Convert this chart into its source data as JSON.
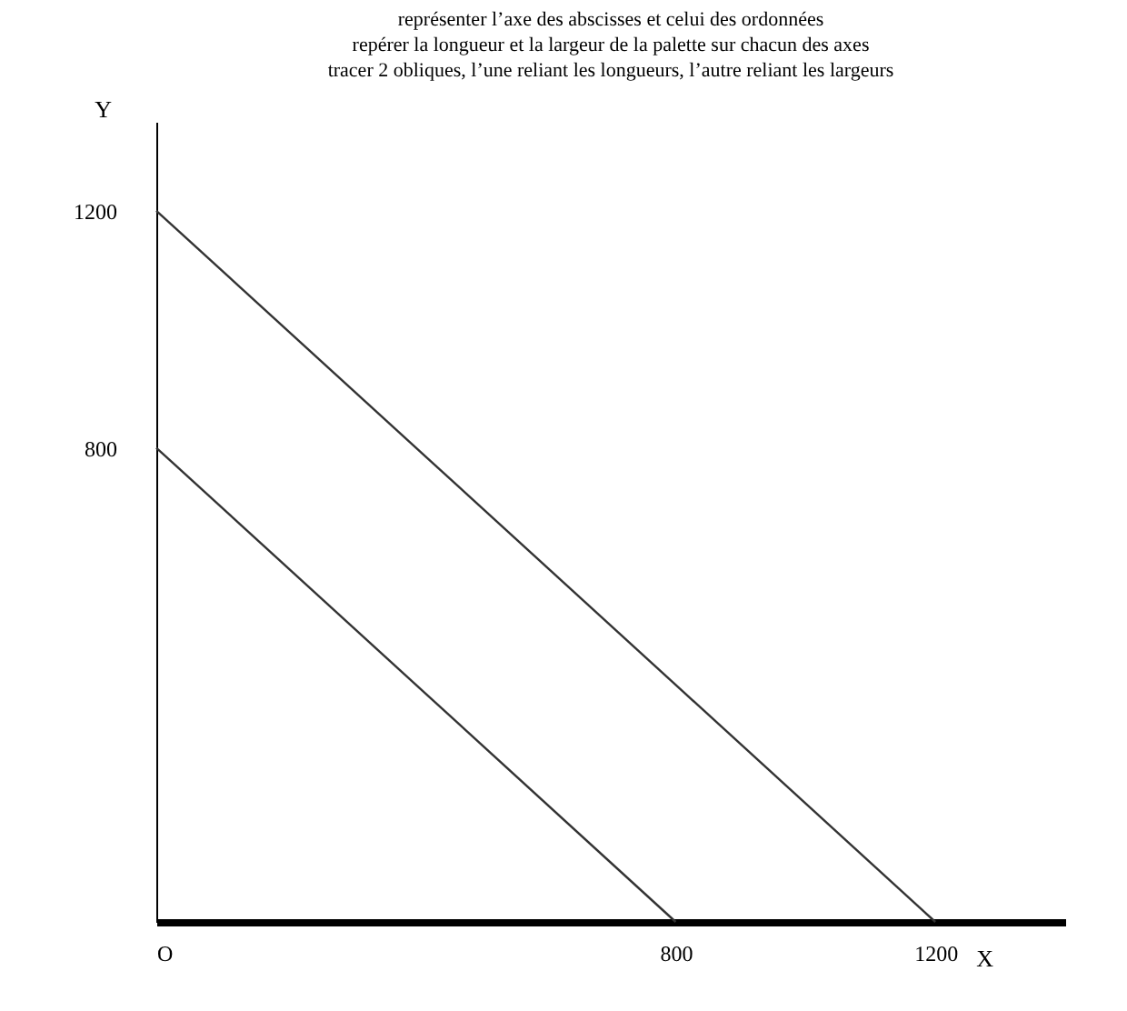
{
  "chart_data": {
    "type": "line",
    "xlabel": "X",
    "ylabel": "Y",
    "annotations": [
      "représenter l’axe des abscisses et celui des ordonnées",
      "repérer la longueur et la largeur de la palette sur chacun des axes",
      "tracer 2 obliques, l’une reliant les longueurs, l’autre reliant les largeurs"
    ],
    "series": [
      {
        "color": "#333333",
        "x": [
          0,
          1200
        ],
        "values": [
          1200,
          0
        ]
      },
      {
        "color": "#333333",
        "x": [
          0,
          800
        ],
        "values": [
          800,
          0
        ]
      }
    ],
    "xlim": [
      0,
      1400
    ],
    "xticks": [
      {
        "value": 0,
        "label": "O"
      },
      800,
      1200
    ],
    "ylim": [
      0,
      1350
    ],
    "yticks": [
      800,
      1200
    ],
    "grid": false,
    "marker": "none",
    "line_style": "solid"
  }
}
